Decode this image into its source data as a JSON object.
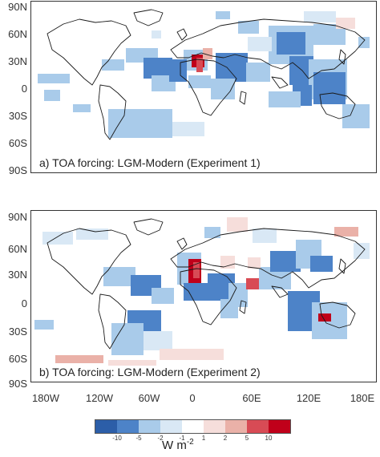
{
  "colors": {
    "minus10": "#2c5ea8",
    "minus5": "#4d83c8",
    "minus2": "#a9cbea",
    "minus1": "#d9e8f5",
    "zero": "#ffffff",
    "plus1": "#f6dedb",
    "plus2": "#eab1a8",
    "plus5": "#d84b55",
    "plus10": "#c0001a",
    "coast": "#1a1a1a"
  },
  "panels": [
    {
      "id": "a",
      "title": "a) TOA forcing: LGM-Modern (Experiment 1)",
      "lat_labels": [
        "90N",
        "60N",
        "30N",
        "0",
        "30S",
        "60S",
        "90S"
      ]
    },
    {
      "id": "b",
      "title": "b) TOA forcing: LGM-Modern (Experiment 2)",
      "lat_labels": [
        "90N",
        "60N",
        "30N",
        "0",
        "30S",
        "60S",
        "90S"
      ]
    }
  ],
  "lon_labels": [
    "180W",
    "120W",
    "60W",
    "0",
    "60E",
    "120E",
    "180E"
  ],
  "colorbar": {
    "tick_labels": [
      "-10",
      "-5",
      "-2",
      "-1",
      "1",
      "2",
      "5",
      "10"
    ],
    "units": "W m",
    "units_exponent": "-2"
  }
}
